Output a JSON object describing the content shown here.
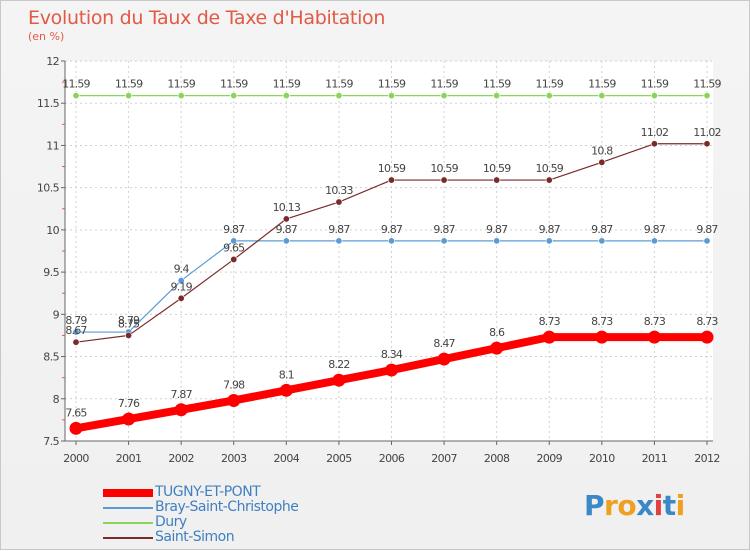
{
  "title": "Evolution du Taux de Taxe d'Habitation",
  "unit": "(en %)",
  "logo": {
    "letters": [
      "P",
      "r",
      "o",
      "x",
      "i",
      "t",
      "i"
    ],
    "colors": [
      "#3a88c8",
      "#f0a020",
      "#f0a020",
      "#3a88c8",
      "#e04040",
      "#3a88c8",
      "#f0a020"
    ]
  },
  "chart_data": {
    "type": "line",
    "x": [
      "2000",
      "2001",
      "2002",
      "2003",
      "2004",
      "2005",
      "2006",
      "2007",
      "2008",
      "2009",
      "2010",
      "2011",
      "2012"
    ],
    "ylim": [
      7.5,
      12
    ],
    "yticks": [
      "7.5",
      "8",
      "8.5",
      "9",
      "9.5",
      "10",
      "10.5",
      "11",
      "11.5",
      "12"
    ],
    "grid": true,
    "legend_position": "bottom-left",
    "series": [
      {
        "name": "TUGNY-ET-PONT",
        "color": "#ff0000",
        "line_width": 8,
        "values": [
          7.65,
          7.76,
          7.87,
          7.98,
          8.1,
          8.22,
          8.34,
          8.47,
          8.6,
          8.73,
          8.73,
          8.73,
          8.73
        ],
        "labels": [
          "7.65",
          "7.76",
          "7.87",
          "7.98",
          "8.1",
          "8.22",
          "8.34",
          "8.47",
          "8.6",
          "8.73",
          "8.73",
          "8.73",
          "8.73"
        ]
      },
      {
        "name": "Bray-Saint-Christophe",
        "color": "#5b9bd5",
        "line_width": 1.2,
        "values": [
          8.79,
          8.79,
          9.4,
          9.87,
          9.87,
          9.87,
          9.87,
          9.87,
          9.87,
          9.87,
          9.87,
          9.87,
          9.87
        ],
        "labels": [
          "8.79",
          "8.79",
          "9.4",
          "9.87",
          "9.87",
          "9.87",
          "9.87",
          "9.87",
          "9.87",
          "9.87",
          "9.87",
          "9.87",
          "9.87"
        ]
      },
      {
        "name": "Dury",
        "color": "#8bd45a",
        "line_width": 1.2,
        "values": [
          11.59,
          11.59,
          11.59,
          11.59,
          11.59,
          11.59,
          11.59,
          11.59,
          11.59,
          11.59,
          11.59,
          11.59,
          11.59
        ],
        "labels": [
          "11.59",
          "11.59",
          "11.59",
          "11.59",
          "11.59",
          "11.59",
          "11.59",
          "11.59",
          "11.59",
          "11.59",
          "11.59",
          "11.59",
          "11.59"
        ]
      },
      {
        "name": "Saint-Simon",
        "color": "#7a2a2a",
        "line_width": 1.2,
        "values": [
          8.67,
          8.75,
          9.19,
          9.65,
          10.13,
          10.33,
          10.59,
          10.59,
          10.59,
          10.59,
          10.8,
          11.02,
          11.02
        ],
        "labels": [
          "8.67",
          "8.75",
          "9.19",
          "9.65",
          "10.13",
          "10.33",
          "10.59",
          "10.59",
          "10.59",
          "10.59",
          "10.8",
          "11.02",
          "11.02"
        ]
      }
    ]
  }
}
